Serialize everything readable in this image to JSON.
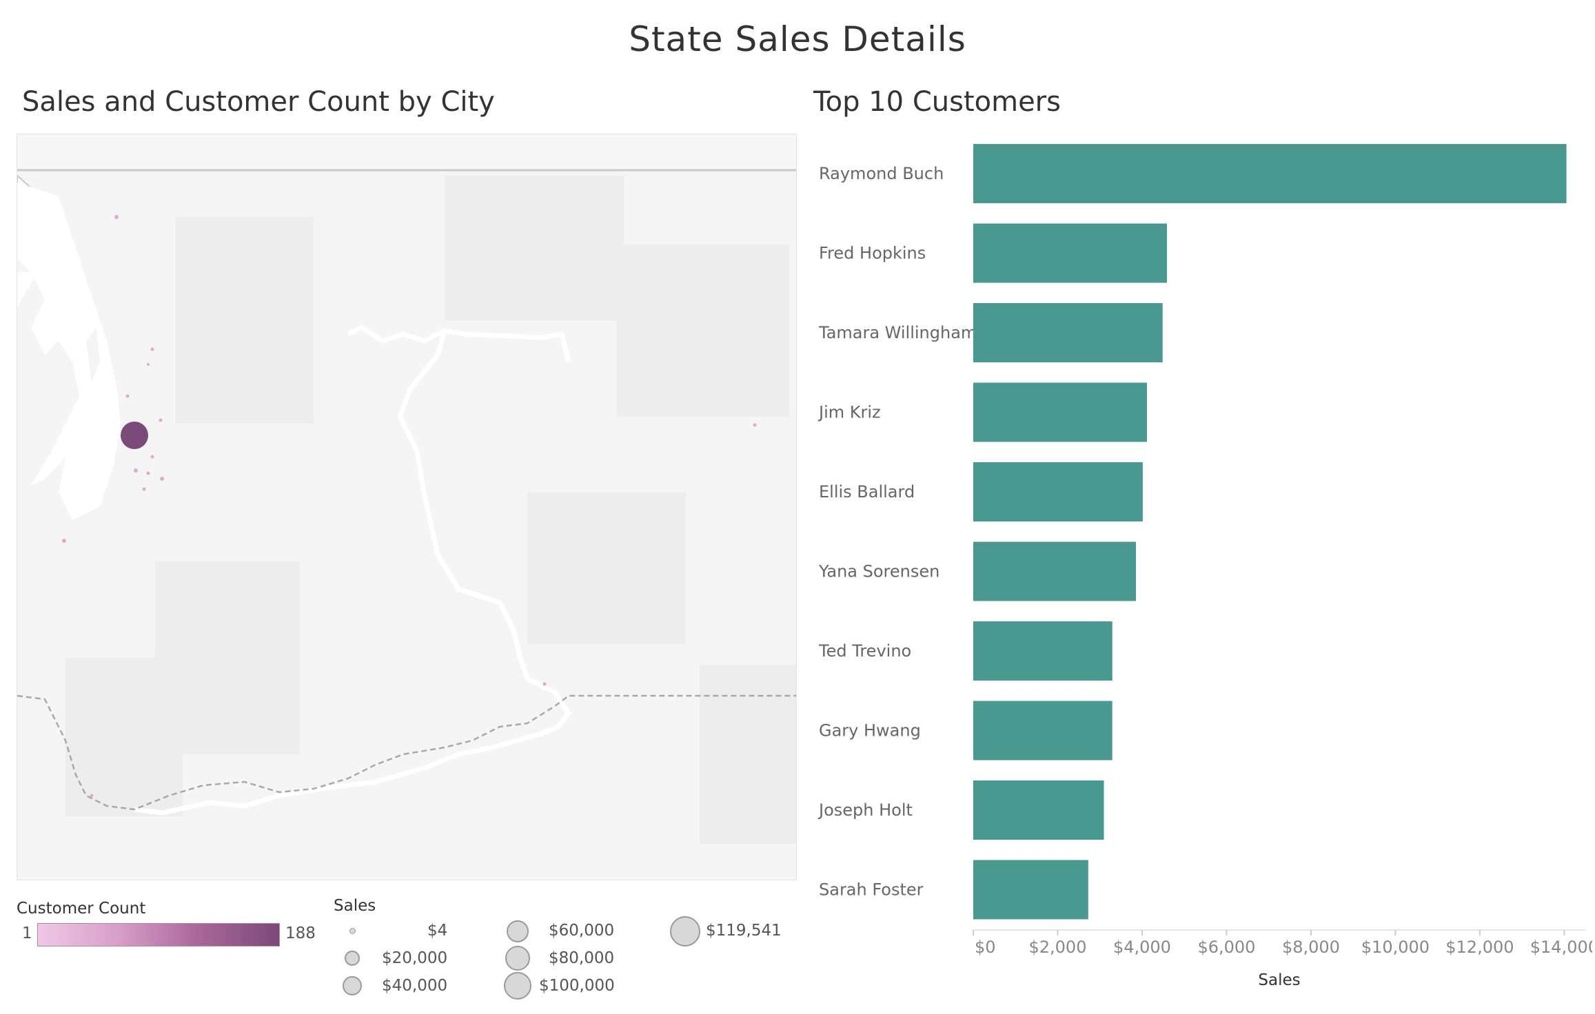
{
  "dashboard": {
    "title": "State Sales Details"
  },
  "map": {
    "title": "Sales and Customer Count by City",
    "customer_count_legend": {
      "title": "Customer Count",
      "min": "1",
      "max": "188",
      "color_low": "#f0c8e6",
      "color_high": "#7a4a78"
    },
    "sales_legend": {
      "title": "Sales",
      "items": [
        {
          "label": "$4",
          "value": 4
        },
        {
          "label": "$20,000",
          "value": 20000
        },
        {
          "label": "$40,000",
          "value": 40000
        },
        {
          "label": "$60,000",
          "value": 60000
        },
        {
          "label": "$80,000",
          "value": 80000
        },
        {
          "label": "$100,000",
          "value": 100000
        },
        {
          "label": "$119,541",
          "value": 119541
        }
      ]
    }
  },
  "bar_chart": {
    "title": "Top 10 Customers"
  },
  "chart_data": {
    "type": "bar",
    "orientation": "horizontal",
    "title": "Top 10 Customers",
    "xlabel": "Sales",
    "ylabel": "",
    "categories": [
      "Raymond Buch",
      "Fred Hopkins",
      "Tamara Willingham",
      "Jim Kriz",
      "Ellis Ballard",
      "Yana Sorensen",
      "Ted Trevino",
      "Gary Hwang",
      "Joseph Holt",
      "Sarah Foster"
    ],
    "values": [
      14052,
      4589,
      4485,
      4115,
      4015,
      3855,
      3294,
      3293,
      3095,
      2724
    ],
    "xlim": [
      0,
      14500
    ],
    "ticks": [
      0,
      2000,
      4000,
      6000,
      8000,
      10000,
      12000,
      14000
    ],
    "tick_labels": [
      "$0",
      "$2,000",
      "$4,000",
      "$6,000",
      "$8,000",
      "$10,000",
      "$12,000",
      "$14,000"
    ],
    "bar_color": "#4a9991",
    "grid": false
  }
}
